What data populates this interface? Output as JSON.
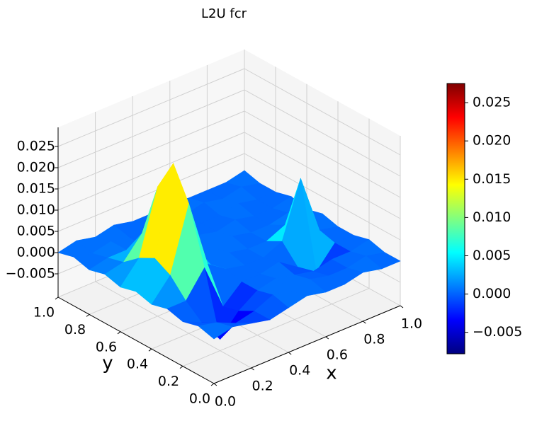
{
  "chart_data": {
    "type": "surface",
    "title": "L2U fcr",
    "x_label": "x",
    "y_label": "y",
    "x": [
      0,
      0.1,
      0.2,
      0.3,
      0.4,
      0.5,
      0.6,
      0.7,
      0.8,
      0.9,
      1
    ],
    "y": [
      0,
      0.1,
      0.2,
      0.3,
      0.4,
      0.5,
      0.6,
      0.7,
      0.8,
      0.9,
      1
    ],
    "z": [
      [
        0.0,
        0.001,
        0.0,
        -0.001,
        0.0,
        0.001,
        0.0,
        0.0,
        0.001,
        0.0,
        0.0
      ],
      [
        0.001,
        0.0,
        -0.002,
        -0.001,
        0.001,
        0.0,
        0.001,
        0.0,
        0.0,
        0.001,
        0.0
      ],
      [
        0.0,
        -0.002,
        -0.0078,
        -0.003,
        0.0,
        0.001,
        0.0,
        -0.001,
        0.0,
        0.0,
        0.001
      ],
      [
        0.001,
        0.001,
        0.007,
        -0.004,
        0.0,
        0.0,
        0.001,
        -0.002,
        -0.005,
        0.0,
        0.0
      ],
      [
        0.0,
        0.005,
        0.02,
        0.004,
        0.001,
        0.0,
        0.0,
        0.002,
        0.015,
        0.001,
        0.0
      ],
      [
        0.001,
        0.007,
        0.0275,
        0.007,
        0.0,
        0.001,
        0.0,
        0.0,
        0.002,
        0.0,
        0.001
      ],
      [
        0.0,
        0.005,
        0.02,
        0.005,
        0.001,
        0.0,
        0.001,
        0.0,
        0.0,
        0.001,
        0.0
      ],
      [
        0.001,
        0.002,
        0.007,
        0.002,
        0.0,
        0.001,
        0.0,
        0.001,
        0.0,
        0.0,
        0.001
      ],
      [
        0.0,
        0.001,
        0.001,
        0.0,
        0.001,
        0.0,
        0.0,
        0.0,
        0.001,
        0.0,
        0.0
      ],
      [
        0.001,
        0.0,
        0.001,
        0.0,
        0.0,
        0.001,
        0.0,
        0.001,
        0.0,
        0.001,
        0.0
      ],
      [
        0.0,
        0.001,
        0.0,
        0.001,
        0.0,
        0.0,
        0.001,
        0.0,
        0.0,
        0.0,
        0.001
      ]
    ],
    "colormap": "jet",
    "xlim": [
      0,
      1
    ],
    "ylim": [
      0,
      1
    ],
    "zlim": [
      -0.0105,
      0.0295
    ],
    "clim": [
      -0.0078,
      0.0275
    ],
    "xticks": [
      {
        "value": 0,
        "label": "0.0"
      },
      0.2,
      0.4,
      0.6,
      0.8,
      {
        "value": 1,
        "label": "1.0"
      }
    ],
    "yticks": [
      {
        "value": 0,
        "label": "0.0"
      },
      0.2,
      0.4,
      0.6,
      0.8,
      {
        "value": 1,
        "label": "1.0"
      }
    ],
    "zticks": [
      {
        "value": -0.005,
        "label": "−0.005"
      },
      {
        "value": 0,
        "label": "0.000"
      },
      0.005,
      {
        "value": 0.01,
        "label": "0.010"
      },
      0.015,
      {
        "value": 0.02,
        "label": "0.020"
      },
      0.025
    ],
    "colorbar_ticks": [
      {
        "value": -0.005,
        "label": "−0.005"
      },
      {
        "value": 0,
        "label": "0.000"
      },
      0.005,
      {
        "value": 0.01,
        "label": "0.010"
      },
      0.015,
      {
        "value": 0.02,
        "label": "0.020"
      },
      0.025
    ],
    "grid": true
  }
}
